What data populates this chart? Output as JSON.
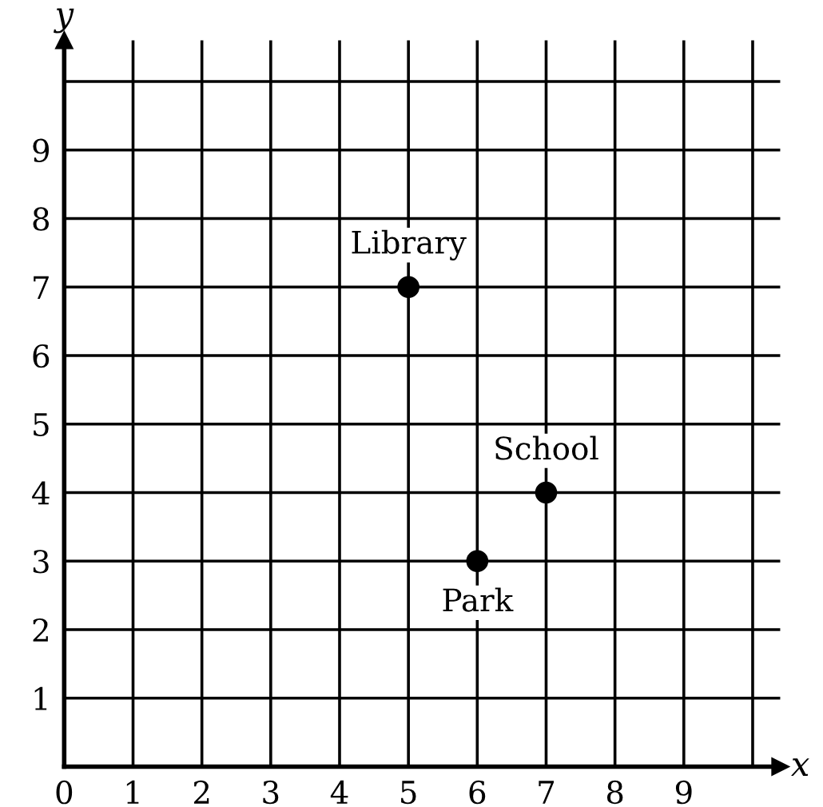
{
  "chart_data": {
    "type": "scatter",
    "xlabel": "x",
    "ylabel": "y",
    "x": [
      5,
      7,
      6
    ],
    "series": [
      {
        "color": "#000000",
        "values": [
          7,
          4,
          3
        ]
      }
    ],
    "marker": "circle",
    "grid": true,
    "xlim": [
      0,
      10.4
    ],
    "ylim": [
      0,
      10.6
    ],
    "xticks": [
      0,
      1,
      2,
      3,
      4,
      5,
      6,
      7,
      8,
      9,
      {
        "value": 10,
        "label": null
      }
    ],
    "yticks": [
      {
        "value": 0,
        "label": null
      },
      1,
      2,
      3,
      4,
      5,
      6,
      7,
      8,
      9,
      {
        "value": 10,
        "label": null
      }
    ],
    "annotations": [
      {
        "text": "Library",
        "x": 5,
        "y": 7
      },
      {
        "text": "School",
        "x": 7,
        "y": 4
      },
      {
        "text": "Park",
        "x": 6,
        "y": 3
      }
    ]
  }
}
